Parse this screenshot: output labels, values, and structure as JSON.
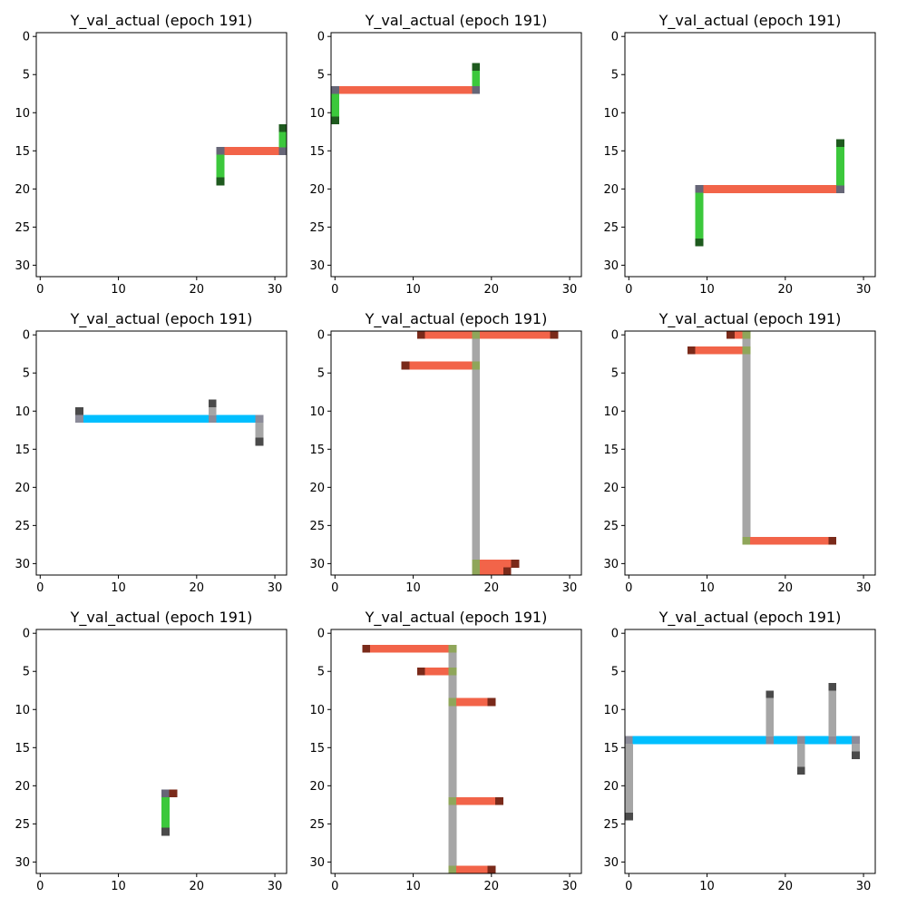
{
  "figure_title": "",
  "chart_data": [
    {
      "type": "heatmap",
      "title": "Y_val_actual (epoch 191)",
      "grid": false,
      "xlim": [
        -0.5,
        31.5
      ],
      "ylim": [
        31.5,
        -0.5
      ],
      "xticks": [
        0,
        10,
        20,
        30
      ],
      "yticks": [
        0,
        5,
        10,
        15,
        20,
        25,
        30
      ],
      "cells": [
        {
          "y": 15,
          "x": 24,
          "w": 7,
          "h": 1,
          "c": "#f26449"
        },
        {
          "y": 15,
          "x": 23,
          "w": 1,
          "h": 1,
          "c": "#666677"
        },
        {
          "y": 15,
          "x": 31,
          "w": 1,
          "h": 1,
          "c": "#666677"
        },
        {
          "y": 16,
          "x": 23,
          "w": 1,
          "h": 3,
          "c": "#3cc83c"
        },
        {
          "y": 19,
          "x": 23,
          "w": 1,
          "h": 1,
          "c": "#1e5a1e"
        },
        {
          "y": 12,
          "x": 31,
          "w": 1,
          "h": 1,
          "c": "#1e5a1e"
        },
        {
          "y": 13,
          "x": 31,
          "w": 1,
          "h": 2,
          "c": "#3cc83c"
        }
      ]
    },
    {
      "type": "heatmap",
      "title": "Y_val_actual (epoch 191)",
      "grid": false,
      "xlim": [
        -0.5,
        31.5
      ],
      "ylim": [
        31.5,
        -0.5
      ],
      "xticks": [
        0,
        10,
        20,
        30
      ],
      "yticks": [
        0,
        5,
        10,
        15,
        20,
        25,
        30
      ],
      "cells": [
        {
          "y": 7,
          "x": 1,
          "w": 17,
          "h": 1,
          "c": "#f26449"
        },
        {
          "y": 7,
          "x": 0,
          "w": 1,
          "h": 1,
          "c": "#666677"
        },
        {
          "y": 7,
          "x": 18,
          "w": 1,
          "h": 1,
          "c": "#666677"
        },
        {
          "y": 4,
          "x": 18,
          "w": 1,
          "h": 1,
          "c": "#1e5a1e"
        },
        {
          "y": 5,
          "x": 18,
          "w": 1,
          "h": 2,
          "c": "#3cc83c"
        },
        {
          "y": 8,
          "x": 0,
          "w": 1,
          "h": 3,
          "c": "#3cc83c"
        },
        {
          "y": 11,
          "x": 0,
          "w": 1,
          "h": 1,
          "c": "#1e5a1e"
        }
      ]
    },
    {
      "type": "heatmap",
      "title": "Y_val_actual (epoch 191)",
      "grid": false,
      "xlim": [
        -0.5,
        31.5
      ],
      "ylim": [
        31.5,
        -0.5
      ],
      "xticks": [
        0,
        10,
        20,
        30
      ],
      "yticks": [
        0,
        5,
        10,
        15,
        20,
        25,
        30
      ],
      "cells": [
        {
          "y": 20,
          "x": 10,
          "w": 17,
          "h": 1,
          "c": "#f26449"
        },
        {
          "y": 20,
          "x": 9,
          "w": 1,
          "h": 1,
          "c": "#666677"
        },
        {
          "y": 20,
          "x": 27,
          "w": 1,
          "h": 1,
          "c": "#666677"
        },
        {
          "y": 14,
          "x": 27,
          "w": 1,
          "h": 1,
          "c": "#1e5a1e"
        },
        {
          "y": 15,
          "x": 27,
          "w": 1,
          "h": 5,
          "c": "#3cc83c"
        },
        {
          "y": 21,
          "x": 9,
          "w": 1,
          "h": 6,
          "c": "#3cc83c"
        },
        {
          "y": 27,
          "x": 9,
          "w": 1,
          "h": 1,
          "c": "#1e5a1e"
        }
      ]
    },
    {
      "type": "heatmap",
      "title": "Y_val_actual (epoch 191)",
      "grid": false,
      "xlim": [
        -0.5,
        31.5
      ],
      "ylim": [
        31.5,
        -0.5
      ],
      "xticks": [
        0,
        10,
        20,
        30
      ],
      "yticks": [
        0,
        5,
        10,
        15,
        20,
        25,
        30
      ],
      "cells": [
        {
          "y": 10,
          "x": 5,
          "w": 1,
          "h": 1,
          "c": "#4a4a4a"
        },
        {
          "y": 11,
          "x": 5,
          "w": 1,
          "h": 1,
          "c": "#8b8b99"
        },
        {
          "y": 11,
          "x": 6,
          "w": 16,
          "h": 1,
          "c": "#00bfff"
        },
        {
          "y": 11,
          "x": 22,
          "w": 1,
          "h": 1,
          "c": "#8b8b99"
        },
        {
          "y": 11,
          "x": 23,
          "w": 5,
          "h": 1,
          "c": "#00bfff"
        },
        {
          "y": 11,
          "x": 28,
          "w": 1,
          "h": 1,
          "c": "#8b8b99"
        },
        {
          "y": 9,
          "x": 22,
          "w": 1,
          "h": 1,
          "c": "#4a4a4a"
        },
        {
          "y": 10,
          "x": 22,
          "w": 1,
          "h": 1,
          "c": "#a6a6a6"
        },
        {
          "y": 12,
          "x": 28,
          "w": 1,
          "h": 2,
          "c": "#a6a6a6"
        },
        {
          "y": 14,
          "x": 28,
          "w": 1,
          "h": 1,
          "c": "#4a4a4a"
        }
      ]
    },
    {
      "type": "heatmap",
      "title": "Y_val_actual (epoch 191)",
      "grid": false,
      "xlim": [
        -0.5,
        31.5
      ],
      "ylim": [
        31.5,
        -0.5
      ],
      "xticks": [
        0,
        10,
        20,
        30
      ],
      "yticks": [
        0,
        5,
        10,
        15,
        20,
        25,
        30
      ],
      "cells": [
        {
          "y": 0,
          "x": 18,
          "w": 1,
          "h": 32,
          "c": "#a6a6a6"
        },
        {
          "y": 0,
          "x": 11,
          "w": 1,
          "h": 1,
          "c": "#7a2a1a"
        },
        {
          "y": 0,
          "x": 12,
          "w": 6,
          "h": 1,
          "c": "#f26449"
        },
        {
          "y": 0,
          "x": 18,
          "w": 1,
          "h": 1,
          "c": "#8fa65a"
        },
        {
          "y": 0,
          "x": 19,
          "w": 9,
          "h": 1,
          "c": "#f26449"
        },
        {
          "y": 0,
          "x": 28,
          "w": 1,
          "h": 1,
          "c": "#7a2a1a"
        },
        {
          "y": 4,
          "x": 9,
          "w": 1,
          "h": 1,
          "c": "#7a2a1a"
        },
        {
          "y": 4,
          "x": 10,
          "w": 8,
          "h": 1,
          "c": "#f26449"
        },
        {
          "y": 4,
          "x": 18,
          "w": 1,
          "h": 1,
          "c": "#8fa65a"
        },
        {
          "y": 30,
          "x": 18,
          "w": 1,
          "h": 2,
          "c": "#8fa65a"
        },
        {
          "y": 30,
          "x": 19,
          "w": 4,
          "h": 1,
          "c": "#f26449"
        },
        {
          "y": 30,
          "x": 23,
          "w": 1,
          "h": 1,
          "c": "#7a2a1a"
        },
        {
          "y": 31,
          "x": 19,
          "w": 3,
          "h": 1,
          "c": "#f26449"
        },
        {
          "y": 31,
          "x": 22,
          "w": 1,
          "h": 1,
          "c": "#7a2a1a"
        }
      ]
    },
    {
      "type": "heatmap",
      "title": "Y_val_actual (epoch 191)",
      "grid": false,
      "xlim": [
        -0.5,
        31.5
      ],
      "ylim": [
        31.5,
        -0.5
      ],
      "xticks": [
        0,
        10,
        20,
        30
      ],
      "yticks": [
        0,
        5,
        10,
        15,
        20,
        25,
        30
      ],
      "cells": [
        {
          "y": 0,
          "x": 15,
          "w": 1,
          "h": 28,
          "c": "#a6a6a6"
        },
        {
          "y": 0,
          "x": 13,
          "w": 1,
          "h": 1,
          "c": "#7a2a1a"
        },
        {
          "y": 0,
          "x": 14,
          "w": 1,
          "h": 1,
          "c": "#f26449"
        },
        {
          "y": 0,
          "x": 15,
          "w": 1,
          "h": 1,
          "c": "#8fa65a"
        },
        {
          "y": 2,
          "x": 8,
          "w": 1,
          "h": 1,
          "c": "#7a2a1a"
        },
        {
          "y": 2,
          "x": 9,
          "w": 6,
          "h": 1,
          "c": "#f26449"
        },
        {
          "y": 2,
          "x": 15,
          "w": 1,
          "h": 1,
          "c": "#8fa65a"
        },
        {
          "y": 27,
          "x": 15,
          "w": 1,
          "h": 1,
          "c": "#8fa65a"
        },
        {
          "y": 27,
          "x": 16,
          "w": 10,
          "h": 1,
          "c": "#f26449"
        },
        {
          "y": 27,
          "x": 26,
          "w": 1,
          "h": 1,
          "c": "#7a2a1a"
        }
      ]
    },
    {
      "type": "heatmap",
      "title": "Y_val_actual (epoch 191)",
      "grid": false,
      "xlim": [
        -0.5,
        31.5
      ],
      "ylim": [
        31.5,
        -0.5
      ],
      "xticks": [
        0,
        10,
        20,
        30
      ],
      "yticks": [
        0,
        5,
        10,
        15,
        20,
        25,
        30
      ],
      "cells": [
        {
          "y": 21,
          "x": 16,
          "w": 1,
          "h": 1,
          "c": "#666677"
        },
        {
          "y": 21,
          "x": 17,
          "w": 1,
          "h": 1,
          "c": "#7a2a1a"
        },
        {
          "y": 22,
          "x": 16,
          "w": 1,
          "h": 4,
          "c": "#3cc83c"
        },
        {
          "y": 26,
          "x": 16,
          "w": 1,
          "h": 1,
          "c": "#4a4a4a"
        }
      ]
    },
    {
      "type": "heatmap",
      "title": "Y_val_actual (epoch 191)",
      "grid": false,
      "xlim": [
        -0.5,
        31.5
      ],
      "ylim": [
        31.5,
        -0.5
      ],
      "xticks": [
        0,
        10,
        20,
        30
      ],
      "yticks": [
        0,
        5,
        10,
        15,
        20,
        25,
        30
      ],
      "cells": [
        {
          "y": 2,
          "x": 15,
          "w": 1,
          "h": 30,
          "c": "#a6a6a6"
        },
        {
          "y": 2,
          "x": 4,
          "w": 1,
          "h": 1,
          "c": "#7a2a1a"
        },
        {
          "y": 2,
          "x": 5,
          "w": 10,
          "h": 1,
          "c": "#f26449"
        },
        {
          "y": 2,
          "x": 15,
          "w": 1,
          "h": 1,
          "c": "#8fa65a"
        },
        {
          "y": 5,
          "x": 11,
          "w": 1,
          "h": 1,
          "c": "#7a2a1a"
        },
        {
          "y": 5,
          "x": 12,
          "w": 3,
          "h": 1,
          "c": "#f26449"
        },
        {
          "y": 5,
          "x": 15,
          "w": 1,
          "h": 1,
          "c": "#8fa65a"
        },
        {
          "y": 9,
          "x": 15,
          "w": 1,
          "h": 1,
          "c": "#8fa65a"
        },
        {
          "y": 9,
          "x": 16,
          "w": 4,
          "h": 1,
          "c": "#f26449"
        },
        {
          "y": 9,
          "x": 20,
          "w": 1,
          "h": 1,
          "c": "#7a2a1a"
        },
        {
          "y": 22,
          "x": 15,
          "w": 1,
          "h": 1,
          "c": "#8fa65a"
        },
        {
          "y": 22,
          "x": 16,
          "w": 5,
          "h": 1,
          "c": "#f26449"
        },
        {
          "y": 22,
          "x": 21,
          "w": 1,
          "h": 1,
          "c": "#7a2a1a"
        },
        {
          "y": 31,
          "x": 15,
          "w": 1,
          "h": 1,
          "c": "#8fa65a"
        },
        {
          "y": 31,
          "x": 16,
          "w": 4,
          "h": 1,
          "c": "#f26449"
        },
        {
          "y": 31,
          "x": 20,
          "w": 1,
          "h": 1,
          "c": "#7a2a1a"
        }
      ]
    },
    {
      "type": "heatmap",
      "title": "Y_val_actual (epoch 191)",
      "grid": false,
      "xlim": [
        -0.5,
        31.5
      ],
      "ylim": [
        31.5,
        -0.5
      ],
      "xticks": [
        0,
        10,
        20,
        30
      ],
      "yticks": [
        0,
        5,
        10,
        15,
        20,
        25,
        30
      ],
      "cells": [
        {
          "y": 14,
          "x": 0,
          "w": 1,
          "h": 1,
          "c": "#8b8b99"
        },
        {
          "y": 14,
          "x": 1,
          "w": 17,
          "h": 1,
          "c": "#00bfff"
        },
        {
          "y": 14,
          "x": 18,
          "w": 1,
          "h": 1,
          "c": "#8b8b99"
        },
        {
          "y": 14,
          "x": 19,
          "w": 3,
          "h": 1,
          "c": "#00bfff"
        },
        {
          "y": 14,
          "x": 22,
          "w": 1,
          "h": 1,
          "c": "#8b8b99"
        },
        {
          "y": 14,
          "x": 23,
          "w": 3,
          "h": 1,
          "c": "#00bfff"
        },
        {
          "y": 14,
          "x": 26,
          "w": 1,
          "h": 1,
          "c": "#8b8b99"
        },
        {
          "y": 14,
          "x": 27,
          "w": 2,
          "h": 1,
          "c": "#00bfff"
        },
        {
          "y": 14,
          "x": 29,
          "w": 1,
          "h": 1,
          "c": "#8b8b99"
        },
        {
          "y": 15,
          "x": 0,
          "w": 1,
          "h": 9,
          "c": "#a6a6a6"
        },
        {
          "y": 24,
          "x": 0,
          "w": 1,
          "h": 1,
          "c": "#4a4a4a"
        },
        {
          "y": 8,
          "x": 18,
          "w": 1,
          "h": 1,
          "c": "#4a4a4a"
        },
        {
          "y": 9,
          "x": 18,
          "w": 1,
          "h": 5,
          "c": "#a6a6a6"
        },
        {
          "y": 7,
          "x": 26,
          "w": 1,
          "h": 1,
          "c": "#4a4a4a"
        },
        {
          "y": 8,
          "x": 26,
          "w": 1,
          "h": 6,
          "c": "#a6a6a6"
        },
        {
          "y": 15,
          "x": 22,
          "w": 1,
          "h": 3,
          "c": "#a6a6a6"
        },
        {
          "y": 18,
          "x": 22,
          "w": 1,
          "h": 1,
          "c": "#4a4a4a"
        },
        {
          "y": 15,
          "x": 29,
          "w": 1,
          "h": 1,
          "c": "#a6a6a6"
        },
        {
          "y": 16,
          "x": 29,
          "w": 1,
          "h": 1,
          "c": "#4a4a4a"
        }
      ]
    }
  ]
}
